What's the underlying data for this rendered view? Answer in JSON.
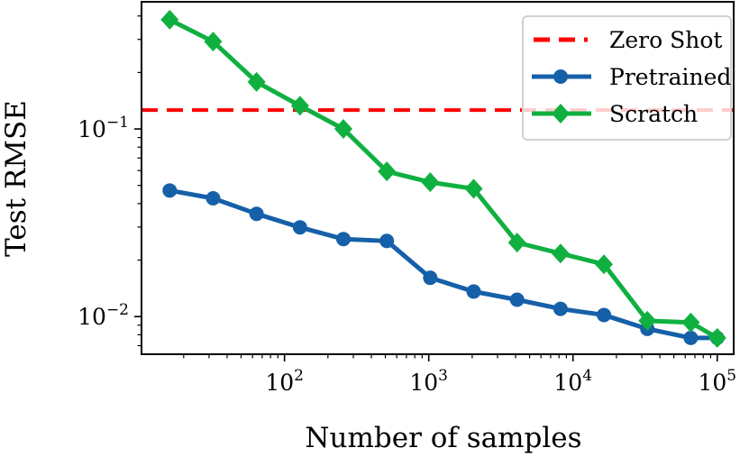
{
  "chart_data": {
    "type": "line",
    "xlabel": "Number of samples",
    "ylabel": "Test RMSE",
    "xscale": "log",
    "yscale": "log",
    "xlim": [
      10.2,
      130000
    ],
    "ylim": [
      0.0063,
      0.476
    ],
    "grid": false,
    "legend_placement": "top-right",
    "x_ticks": [
      {
        "value": 100,
        "base": "10",
        "exp": "2"
      },
      {
        "value": 1000,
        "base": "10",
        "exp": "3"
      },
      {
        "value": 10000,
        "base": "10",
        "exp": "4"
      },
      {
        "value": 100000,
        "base": "10",
        "exp": "5"
      }
    ],
    "y_ticks": [
      {
        "value": 0.01,
        "base": "10",
        "exp": "−2"
      },
      {
        "value": 0.1,
        "base": "10",
        "exp": "−1"
      }
    ],
    "x": [
      16,
      32,
      64,
      128,
      256,
      512,
      1024,
      2048,
      4096,
      8192,
      16384,
      32768,
      65536,
      100000
    ],
    "hlines": [
      {
        "name": "Zero Shot",
        "value": 0.126,
        "color": "#ff0000",
        "style": "dashed"
      }
    ],
    "series": [
      {
        "name": "Pretrained",
        "color": "#1560a8",
        "marker": "circle",
        "values": [
          0.047,
          0.0427,
          0.0353,
          0.0299,
          0.0259,
          0.0253,
          0.0161,
          0.0136,
          0.0123,
          0.011,
          0.0102,
          0.0086,
          0.0077,
          0.0077
        ]
      },
      {
        "name": "Scratch",
        "color": "#10b040",
        "marker": "diamond",
        "values": [
          0.382,
          0.292,
          0.178,
          0.133,
          0.1,
          0.0594,
          0.052,
          0.048,
          0.0248,
          0.0217,
          0.019,
          0.0095,
          0.0093,
          0.0077
        ]
      }
    ]
  }
}
